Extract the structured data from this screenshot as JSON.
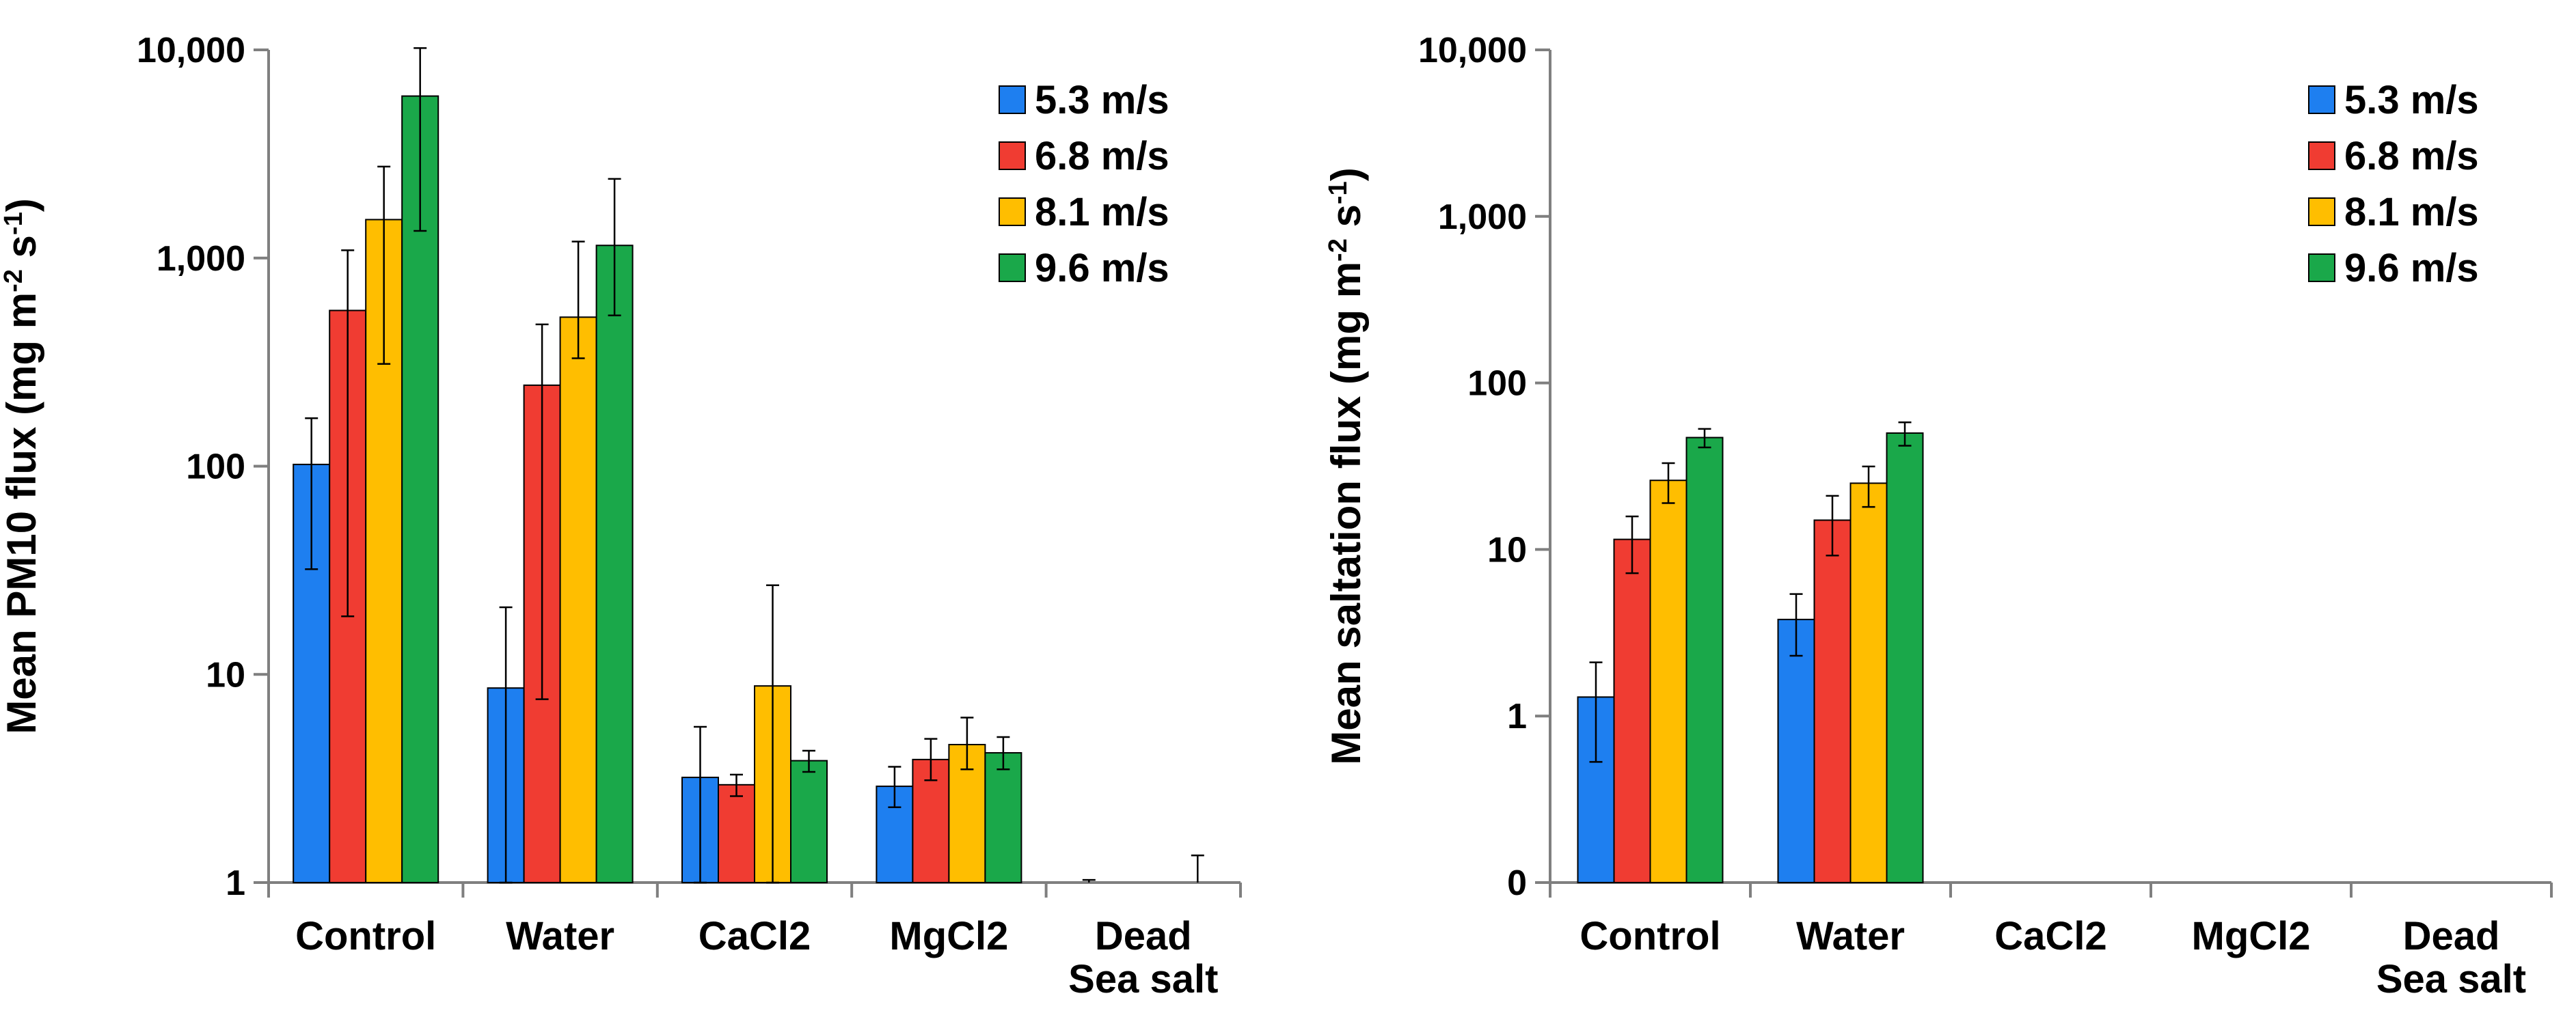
{
  "chart_data": [
    {
      "type": "bar",
      "scale": "log",
      "ylabel": "Mean PM10 flux (mg m-2 s-1)",
      "ylabel_parts": {
        "main": "Mean PM10 flux (mg m",
        "exp1": "-2",
        "mid": " s",
        "exp2": "-1",
        "end": ")"
      },
      "ylim": [
        1,
        10000
      ],
      "yticks": [
        1,
        10,
        100,
        1000,
        10000
      ],
      "ytick_labels": [
        "1",
        "10",
        "100",
        "1,000",
        "10,000"
      ],
      "categories": [
        [
          "Control"
        ],
        [
          "Water"
        ],
        [
          "CaCl2"
        ],
        [
          "MgCl2"
        ],
        [
          "Dead",
          "Sea salt"
        ]
      ],
      "series": [
        {
          "name": "5.3 m/s",
          "color": "#1e7ff0",
          "values": [
            102,
            8.6,
            3.2,
            2.9,
            null
          ],
          "err_low": [
            32,
            1,
            1,
            2.3,
            null
          ],
          "err_high": [
            170,
            21,
            5.6,
            3.6,
            1.03
          ]
        },
        {
          "name": "6.8 m/s",
          "color": "#f03c32",
          "values": [
            560,
            245,
            2.95,
            3.9,
            null
          ],
          "err_low": [
            19,
            7.6,
            2.6,
            3.1,
            null
          ],
          "err_high": [
            1090,
            480,
            3.3,
            4.9,
            null
          ]
        },
        {
          "name": "8.1 m/s",
          "color": "#ffbe00",
          "values": [
            1530,
            520,
            8.8,
            4.6,
            null
          ],
          "err_low": [
            310,
            330,
            1,
            3.5,
            null
          ],
          "err_high": [
            2750,
            1200,
            26.8,
            6.2,
            null
          ]
        },
        {
          "name": "9.6 m/s",
          "color": "#1aa84a",
          "values": [
            6000,
            1150,
            3.85,
            4.2,
            null
          ],
          "err_low": [
            1350,
            530,
            3.4,
            3.5,
            null
          ],
          "err_high": [
            10200,
            2400,
            4.3,
            5.0,
            1.35
          ]
        }
      ]
    },
    {
      "type": "bar",
      "scale": "log",
      "ylabel": "Mean saltation flux (mg m-2 s-1)",
      "ylabel_parts": {
        "main": "Mean saltation flux (mg m",
        "exp1": "-2",
        "mid": " s",
        "exp2": "-1",
        "end": ")"
      },
      "ylim": [
        0.1,
        10000
      ],
      "yticks": [
        0.1,
        1,
        10,
        100,
        1000,
        10000
      ],
      "ytick_labels": [
        "0",
        "1",
        "10",
        "100",
        "1,000",
        "10,000"
      ],
      "categories": [
        [
          "Control"
        ],
        [
          "Water"
        ],
        [
          "CaCl2"
        ],
        [
          "MgCl2"
        ],
        [
          "Dead",
          "Sea salt"
        ]
      ],
      "series": [
        {
          "name": "5.3 m/s",
          "color": "#1e7ff0",
          "values": [
            1.3,
            3.8,
            null,
            null,
            null
          ],
          "err_low": [
            0.53,
            2.3,
            null,
            null,
            null
          ],
          "err_high": [
            2.1,
            5.4,
            null,
            null,
            null
          ]
        },
        {
          "name": "6.8 m/s",
          "color": "#f03c32",
          "values": [
            11.5,
            15,
            null,
            null,
            null
          ],
          "err_low": [
            7.2,
            9.2,
            null,
            null,
            null
          ],
          "err_high": [
            15.8,
            21,
            null,
            null,
            null
          ]
        },
        {
          "name": "8.1 m/s",
          "color": "#ffbe00",
          "values": [
            26,
            25,
            null,
            null,
            null
          ],
          "err_low": [
            19,
            18,
            null,
            null,
            null
          ],
          "err_high": [
            33,
            31.5,
            null,
            null,
            null
          ]
        },
        {
          "name": "9.6 m/s",
          "color": "#1aa84a",
          "values": [
            47,
            50,
            null,
            null,
            null
          ],
          "err_low": [
            41,
            42,
            null,
            null,
            null
          ],
          "err_high": [
            53,
            58,
            null,
            null,
            null
          ]
        }
      ]
    }
  ]
}
